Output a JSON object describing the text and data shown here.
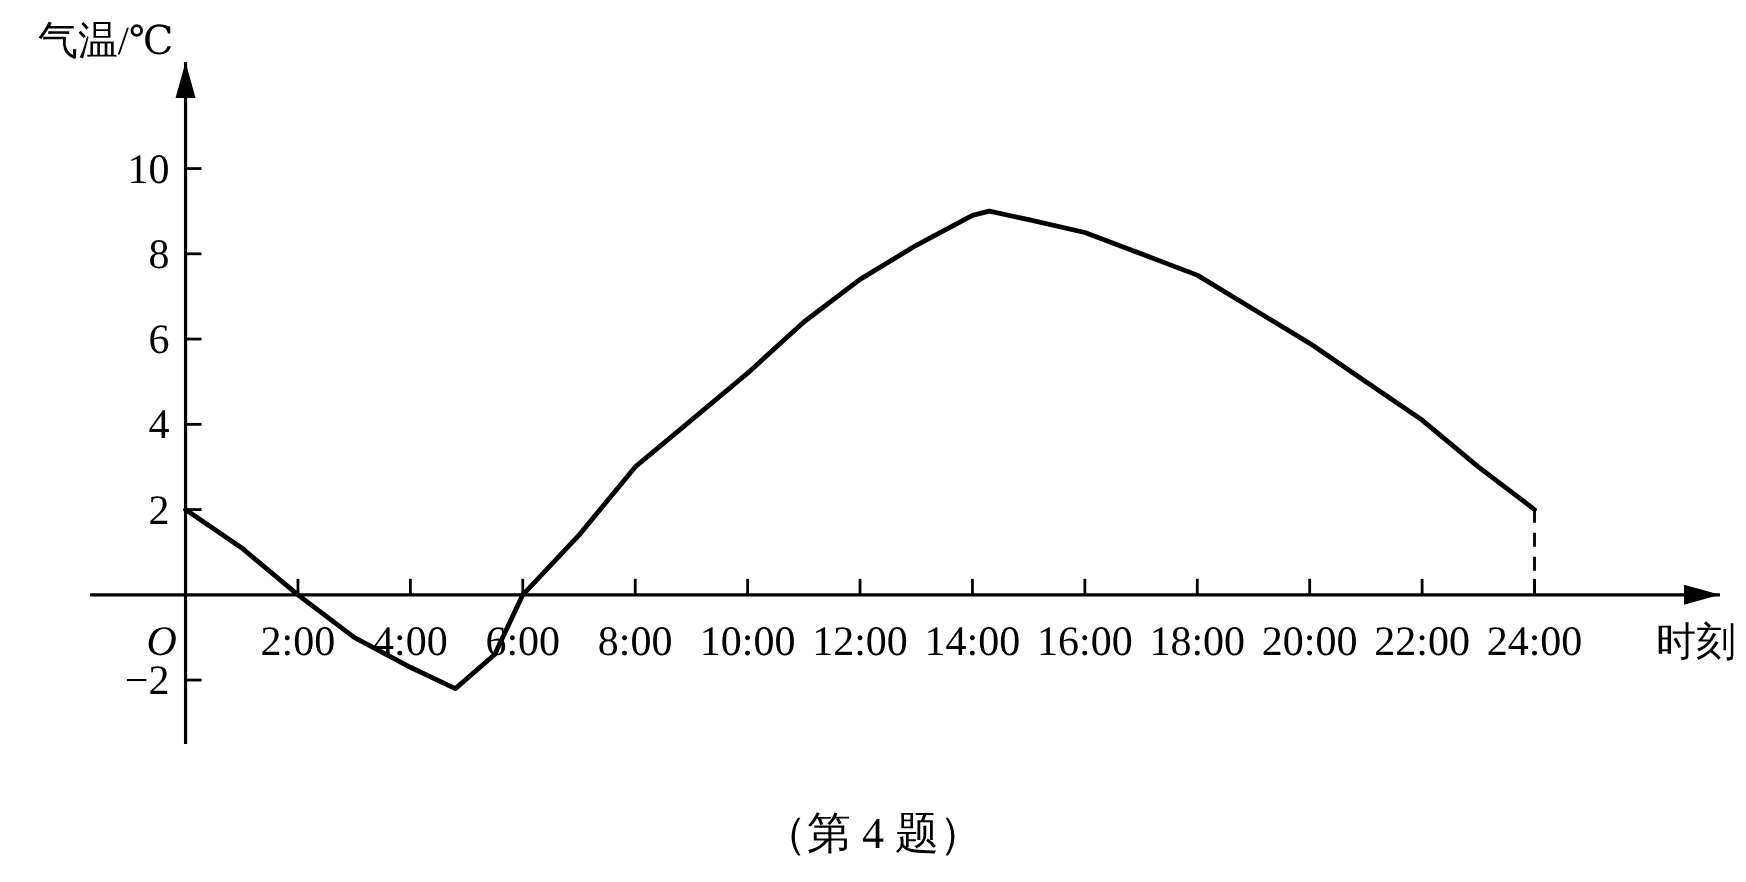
{
  "chart_data": {
    "type": "line",
    "xlabel": "时刻",
    "ylabel": "气温/℃",
    "annotations": [
      "（第 4 题）"
    ],
    "x": [
      0,
      1,
      2,
      3,
      4,
      4.8,
      5.5,
      6,
      7,
      8,
      9,
      10,
      11,
      12,
      13,
      14,
      14.3,
      15,
      16,
      17,
      18,
      19,
      20,
      21,
      22,
      23,
      24
    ],
    "values": [
      2,
      1.1,
      0,
      -1.0,
      -1.7,
      -2.2,
      -1.4,
      0,
      1.4,
      3.0,
      4.1,
      5.2,
      6.4,
      7.4,
      8.2,
      8.9,
      9.0,
      8.8,
      8.5,
      8.0,
      7.5,
      6.7,
      5.9,
      5.0,
      4.1,
      3.0,
      2
    ],
    "color": "#000000",
    "marker": "none",
    "line_style": "solid",
    "xlim": [
      -1.7,
      27.3
    ],
    "ylim": [
      -3.5,
      12.5
    ],
    "xticks": [
      {
        "value": 0,
        "label": "O"
      },
      {
        "value": 2,
        "label": "2:00"
      },
      {
        "value": 4,
        "label": "4:00"
      },
      {
        "value": 6,
        "label": "6:00"
      },
      {
        "value": 8,
        "label": "8:00"
      },
      {
        "value": 10,
        "label": "10:00"
      },
      {
        "value": 12,
        "label": "12:00"
      },
      {
        "value": 14,
        "label": "14:00"
      },
      {
        "value": 16,
        "label": "16:00"
      },
      {
        "value": 18,
        "label": "18:00"
      },
      {
        "value": 20,
        "label": "20:00"
      },
      {
        "value": 22,
        "label": "22:00"
      },
      {
        "value": 24,
        "label": "24:00"
      }
    ],
    "yticks": [
      -2,
      2,
      4,
      6,
      8,
      10
    ],
    "ref_lines": [
      {
        "axis": "x",
        "value": 24,
        "line_style": "dashed"
      }
    ]
  }
}
